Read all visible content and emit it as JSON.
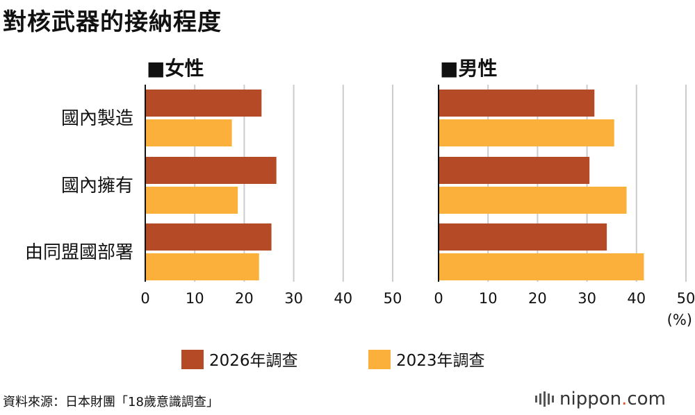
{
  "title": "對核武器的接納程度",
  "source": "資料來源：日本財團「18歲意識調查」",
  "logo": {
    "name": "nippon",
    "dot": ".",
    "suffix": "com"
  },
  "colors": {
    "s2026": "#b44a26",
    "s2023": "#fbb03b",
    "grid": "#cccccc"
  },
  "chart_data": {
    "type": "bar",
    "orientation": "horizontal",
    "categories": [
      "國內製造",
      "國內擁有",
      "由同盟國部署"
    ],
    "unit": "(%)",
    "xlim": [
      0,
      50
    ],
    "xticks": [
      0,
      10,
      20,
      30,
      40,
      50
    ],
    "legend": [
      {
        "name": "2026年調查"
      },
      {
        "name": "2023年調查"
      }
    ],
    "panels": [
      {
        "title": "■女性",
        "series": [
          {
            "name": "2026年調查",
            "values": [
              23.5,
              26.5,
              25.5
            ]
          },
          {
            "name": "2023年調查",
            "values": [
              17.5,
              18.7,
              23.0
            ]
          }
        ]
      },
      {
        "title": "■男性",
        "series": [
          {
            "name": "2026年調查",
            "values": [
              31.5,
              30.5,
              34.0
            ]
          },
          {
            "name": "2023年調查",
            "values": [
              35.5,
              38.0,
              41.5
            ]
          }
        ]
      }
    ]
  }
}
